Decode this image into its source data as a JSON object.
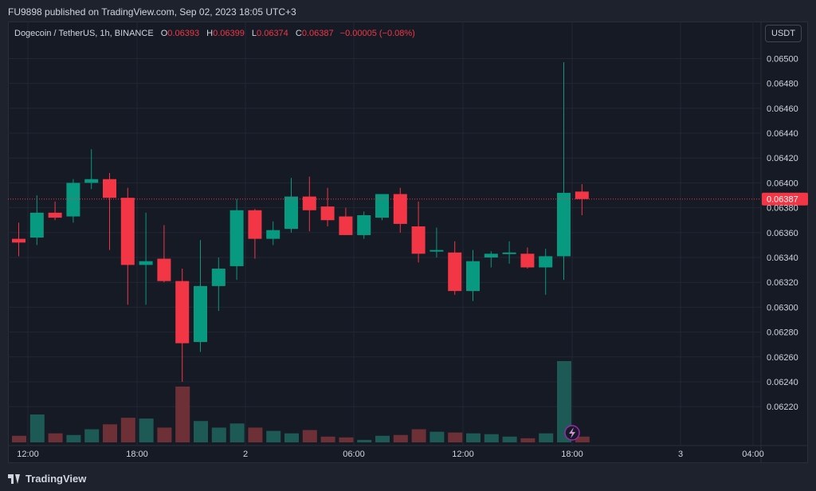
{
  "header": {
    "published": "FU9898 published on TradingView.com, Sep 02, 2023 18:05 UTC+3"
  },
  "legend": {
    "symbol": "Dogecoin / TetherUS, 1h, BINANCE",
    "open_label": "O",
    "open": "0.06393",
    "high_label": "H",
    "high": "0.06399",
    "low_label": "L",
    "low": "0.06374",
    "close_label": "C",
    "close": "0.06387",
    "change": "−0.00005 (−0.08%)"
  },
  "currency_button": "USDT",
  "footer": {
    "brand": "TradingView"
  },
  "colors": {
    "up": "#089981",
    "down": "#f23645",
    "up_volume": "#1e5a55",
    "down_volume": "#6e3037",
    "background": "#161a25",
    "grid": "#232734",
    "text": "#d1d4dc"
  },
  "chart_data": {
    "type": "candlestick",
    "price_range": [
      0.06206,
      0.06508
    ],
    "y_ticks": [
      "0.06500",
      "0.06480",
      "0.06460",
      "0.06440",
      "0.06420",
      "0.06400",
      "0.06380",
      "0.06360",
      "0.06340",
      "0.06320",
      "0.06300",
      "0.06280",
      "0.06260",
      "0.06240",
      "0.06220"
    ],
    "x_ticks": [
      "12:00",
      "18:00",
      "2",
      "06:00",
      "12:00",
      "18:00",
      "3",
      "04:00"
    ],
    "last_price": "0.06387",
    "candles": [
      {
        "o": 0.06355,
        "h": 0.06368,
        "l": 0.06341,
        "c": 0.06352,
        "v": 0.8
      },
      {
        "o": 0.06356,
        "h": 0.0639,
        "l": 0.0635,
        "c": 0.06376,
        "v": 3.4
      },
      {
        "o": 0.06376,
        "h": 0.06385,
        "l": 0.0637,
        "c": 0.06372,
        "v": 1.1
      },
      {
        "o": 0.06373,
        "h": 0.06403,
        "l": 0.06368,
        "c": 0.064,
        "v": 0.9
      },
      {
        "o": 0.064,
        "h": 0.06427,
        "l": 0.06395,
        "c": 0.06403,
        "v": 1.6
      },
      {
        "o": 0.06403,
        "h": 0.06408,
        "l": 0.06346,
        "c": 0.06388,
        "v": 2.2
      },
      {
        "o": 0.06388,
        "h": 0.06396,
        "l": 0.06302,
        "c": 0.06334,
        "v": 3.0
      },
      {
        "o": 0.06334,
        "h": 0.06376,
        "l": 0.06302,
        "c": 0.06337,
        "v": 2.9
      },
      {
        "o": 0.06339,
        "h": 0.06366,
        "l": 0.0632,
        "c": 0.06321,
        "v": 1.8
      },
      {
        "o": 0.06321,
        "h": 0.06331,
        "l": 0.0624,
        "c": 0.06271,
        "v": 6.8
      },
      {
        "o": 0.06272,
        "h": 0.06354,
        "l": 0.06264,
        "c": 0.06317,
        "v": 2.6
      },
      {
        "o": 0.06317,
        "h": 0.0634,
        "l": 0.06297,
        "c": 0.06331,
        "v": 1.8
      },
      {
        "o": 0.06333,
        "h": 0.06387,
        "l": 0.06322,
        "c": 0.06378,
        "v": 2.3
      },
      {
        "o": 0.06378,
        "h": 0.06379,
        "l": 0.06339,
        "c": 0.06355,
        "v": 1.8
      },
      {
        "o": 0.06355,
        "h": 0.06369,
        "l": 0.0635,
        "c": 0.06362,
        "v": 1.4
      },
      {
        "o": 0.06363,
        "h": 0.06404,
        "l": 0.0636,
        "c": 0.06389,
        "v": 1.1
      },
      {
        "o": 0.06389,
        "h": 0.06405,
        "l": 0.06361,
        "c": 0.06378,
        "v": 1.5
      },
      {
        "o": 0.06381,
        "h": 0.06396,
        "l": 0.06365,
        "c": 0.0637,
        "v": 0.7
      },
      {
        "o": 0.06373,
        "h": 0.0638,
        "l": 0.06359,
        "c": 0.06358,
        "v": 0.6
      },
      {
        "o": 0.06358,
        "h": 0.06377,
        "l": 0.06355,
        "c": 0.06374,
        "v": 0.3
      },
      {
        "o": 0.06372,
        "h": 0.06391,
        "l": 0.0637,
        "c": 0.06391,
        "v": 0.8
      },
      {
        "o": 0.06391,
        "h": 0.06396,
        "l": 0.0636,
        "c": 0.06367,
        "v": 0.9
      },
      {
        "o": 0.06365,
        "h": 0.06385,
        "l": 0.06336,
        "c": 0.06343,
        "v": 1.6
      },
      {
        "o": 0.06345,
        "h": 0.06364,
        "l": 0.0634,
        "c": 0.06346,
        "v": 1.3
      },
      {
        "o": 0.06344,
        "h": 0.06353,
        "l": 0.0631,
        "c": 0.06313,
        "v": 1.2
      },
      {
        "o": 0.06313,
        "h": 0.06346,
        "l": 0.06305,
        "c": 0.06337,
        "v": 1.1
      },
      {
        "o": 0.0634,
        "h": 0.06345,
        "l": 0.06332,
        "c": 0.06343,
        "v": 1.0
      },
      {
        "o": 0.06343,
        "h": 0.06353,
        "l": 0.06335,
        "c": 0.06344,
        "v": 0.7
      },
      {
        "o": 0.06343,
        "h": 0.06348,
        "l": 0.06331,
        "c": 0.06332,
        "v": 0.5
      },
      {
        "o": 0.06332,
        "h": 0.06347,
        "l": 0.0631,
        "c": 0.06341,
        "v": 1.1
      },
      {
        "o": 0.06341,
        "h": 0.06497,
        "l": 0.06322,
        "c": 0.06392,
        "v": 9.9
      },
      {
        "o": 0.06393,
        "h": 0.06399,
        "l": 0.06374,
        "c": 0.06387,
        "v": 0.7
      }
    ]
  }
}
